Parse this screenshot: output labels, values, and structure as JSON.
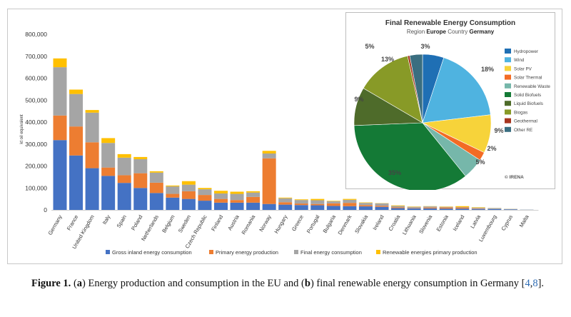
{
  "chart_data": [
    {
      "type": "bar",
      "stacked": true,
      "ylabel": "kt oil equivalent",
      "ylim": [
        0,
        800000
      ],
      "yticks": [
        "0",
        "100,000",
        "200,000",
        "300,000",
        "400,000",
        "500,000",
        "600,000",
        "700,000",
        "800,000"
      ],
      "categories": [
        "Germany",
        "France",
        "United Kingdom",
        "Italy",
        "Spain",
        "Poland",
        "Netherlands",
        "Belgium",
        "Sweden",
        "Czech Republic",
        "Finland",
        "Austria",
        "Romania",
        "Norway",
        "Hungary",
        "Greece",
        "Portugal",
        "Bulgaria",
        "Denmark",
        "Slovakia",
        "Ireland",
        "Croatia",
        "Lithuania",
        "Slovenia",
        "Estonia",
        "Iceland",
        "Latvia",
        "Luxembourg",
        "Cyprus",
        "Malta"
      ],
      "series": [
        {
          "name": "Gross inland energy consumption",
          "color": "#4472c4",
          "values": [
            318000,
            248000,
            190000,
            155000,
            123000,
            100000,
            77000,
            56000,
            50000,
            42000,
            33000,
            33000,
            33000,
            27000,
            24000,
            22000,
            21000,
            18000,
            17000,
            16000,
            14000,
            8000,
            7000,
            7000,
            6000,
            6000,
            4000,
            4000,
            2500,
            800
          ]
        },
        {
          "name": "Primary energy production",
          "color": "#ed7d31",
          "values": [
            112000,
            132000,
            118000,
            38000,
            35000,
            67000,
            47000,
            17000,
            35000,
            26000,
            17000,
            12000,
            26000,
            208000,
            11000,
            7000,
            6000,
            12000,
            15000,
            6000,
            5000,
            4000,
            2000,
            4000,
            5000,
            5000,
            2000,
            200,
            200,
            0
          ]
        },
        {
          "name": "Final energy consumption",
          "color": "#a5a5a5",
          "values": [
            220000,
            148000,
            135000,
            112000,
            80000,
            64000,
            46000,
            34000,
            30000,
            26000,
            25000,
            28000,
            20000,
            22000,
            18000,
            16000,
            17000,
            9000,
            14000,
            10000,
            11000,
            6000,
            5000,
            5000,
            3000,
            2000,
            4000,
            4000,
            1800,
            500
          ]
        },
        {
          "name": "Renewable energies primary production",
          "color": "#ffc000",
          "values": [
            40000,
            20000,
            12000,
            22000,
            16000,
            10000,
            6000,
            4000,
            16000,
            6000,
            12000,
            10000,
            6000,
            12000,
            3000,
            3000,
            6000,
            2000,
            4000,
            2000,
            1000,
            2500,
            1500,
            1000,
            1500,
            4000,
            2000,
            400,
            300,
            100
          ]
        }
      ]
    },
    {
      "type": "pie",
      "title": "Final Renewable Energy Consumption",
      "subtitle": {
        "region_label": "Region",
        "region": "Europe",
        "country_label": "Country",
        "country": "Germany"
      },
      "source": "© IRENA",
      "legend_placement": "right",
      "slices": [
        {
          "name": "Hydropower",
          "value": 5,
          "label": "5%",
          "color": "#1f6fb4"
        },
        {
          "name": "Wind",
          "value": 18,
          "label": "18%",
          "color": "#4fb3e0"
        },
        {
          "name": "Solar PV",
          "value": 9,
          "label": "9%",
          "color": "#f7d33a"
        },
        {
          "name": "Solar Thermal",
          "value": 2,
          "label": "2%",
          "color": "#f36b24"
        },
        {
          "name": "Renewable Waste",
          "value": 5,
          "label": "5%",
          "color": "#76b7aa"
        },
        {
          "name": "Solid Biofuels",
          "value": 35,
          "label": "35%",
          "color": "#147a36"
        },
        {
          "name": "Liquid Biofuels",
          "value": 9,
          "label": "9%",
          "color": "#4e6b2a"
        },
        {
          "name": "Biogas",
          "value": 13,
          "label": "13%",
          "color": "#889a27"
        },
        {
          "name": "Geothermal",
          "value": 0.5,
          "label": "",
          "color": "#a7351f"
        },
        {
          "name": "Other RE",
          "value": 3,
          "label": "3%",
          "color": "#3a6e80"
        }
      ]
    }
  ],
  "caption": {
    "label": "Figure 1.",
    "part_a_open": " (",
    "part_a": "a",
    "text1": ") Energy production and consumption in the EU and (",
    "part_b": "b",
    "text2": ") final renewable energy consumption in Germany [",
    "ref1": "4",
    "ref_sep": ",",
    "ref2": "8",
    "text3": "]."
  }
}
